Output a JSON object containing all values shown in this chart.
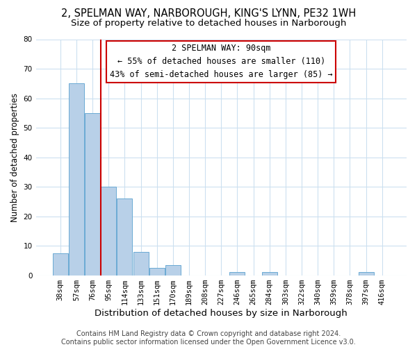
{
  "title": "2, SPELMAN WAY, NARBOROUGH, KING'S LYNN, PE32 1WH",
  "subtitle": "Size of property relative to detached houses in Narborough",
  "xlabel": "Distribution of detached houses by size in Narborough",
  "ylabel": "Number of detached properties",
  "bar_labels": [
    "38sqm",
    "57sqm",
    "76sqm",
    "95sqm",
    "114sqm",
    "133sqm",
    "151sqm",
    "170sqm",
    "189sqm",
    "208sqm",
    "227sqm",
    "246sqm",
    "265sqm",
    "284sqm",
    "303sqm",
    "322sqm",
    "340sqm",
    "359sqm",
    "378sqm",
    "397sqm",
    "416sqm"
  ],
  "bar_values": [
    7.5,
    65,
    55,
    30,
    26,
    8,
    2.5,
    3.5,
    0,
    0,
    0,
    1,
    0,
    1,
    0,
    0,
    0,
    0,
    0,
    1,
    0
  ],
  "bar_color": "#b8d0e8",
  "bar_edge_color": "#6aaad4",
  "ylim": [
    0,
    80
  ],
  "yticks": [
    0,
    10,
    20,
    30,
    40,
    50,
    60,
    70,
    80
  ],
  "vline_x": 2.5,
  "vline_color": "#cc0000",
  "annotation_title": "2 SPELMAN WAY: 90sqm",
  "annotation_line1": "← 55% of detached houses are smaller (110)",
  "annotation_line2": "43% of semi-detached houses are larger (85) →",
  "annotation_box_color": "#cc0000",
  "footer_line1": "Contains HM Land Registry data © Crown copyright and database right 2024.",
  "footer_line2": "Contains public sector information licensed under the Open Government Licence v3.0.",
  "title_fontsize": 10.5,
  "subtitle_fontsize": 9.5,
  "xlabel_fontsize": 9.5,
  "ylabel_fontsize": 8.5,
  "tick_fontsize": 7.5,
  "annotation_fontsize": 8.5,
  "footer_fontsize": 7
}
